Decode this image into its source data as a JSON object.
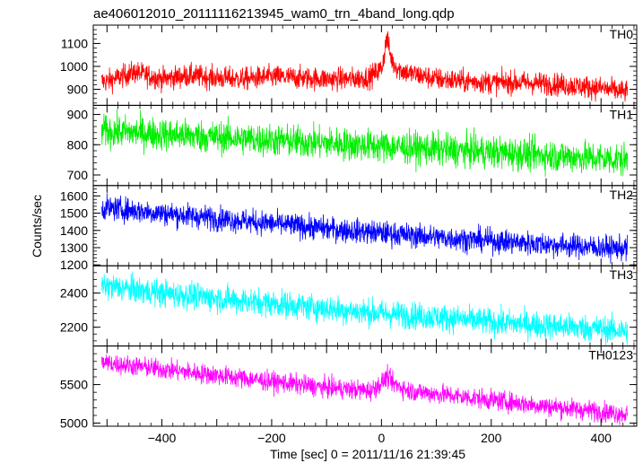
{
  "chart_data": {
    "type": "line",
    "title": "ae406012010_20111116213945_wam0_trn_4band_long.qdp",
    "xlabel": "Time [sec] 0 = 2011/11/16 21:39:45",
    "ylabel": "Counts/sec",
    "xlim": [
      -525,
      465
    ],
    "xticks": [
      -400,
      -200,
      0,
      200,
      400
    ],
    "grid": false,
    "panels": [
      {
        "name": "TH0",
        "color": "#ff0000",
        "ylim": [
          830,
          1180
        ],
        "yticks": [
          900,
          1000,
          1100
        ],
        "t": [
          -500,
          -450,
          -400,
          -350,
          -300,
          -250,
          -200,
          -150,
          -100,
          -50,
          -20,
          0,
          5,
          10,
          15,
          20,
          30,
          50,
          80,
          100,
          150,
          200,
          250,
          300,
          350,
          400,
          440
        ],
        "values": [
          935,
          975,
          945,
          960,
          950,
          945,
          955,
          950,
          945,
          945,
          955,
          990,
          1050,
          1130,
          1060,
          1020,
          990,
          970,
          955,
          945,
          935,
          930,
          930,
          925,
          915,
          905,
          890
        ],
        "noise": 25
      },
      {
        "name": "TH1",
        "color": "#00ee00",
        "ylim": [
          665,
          930
        ],
        "yticks": [
          700,
          800,
          900
        ],
        "t": [
          -500,
          -400,
          -300,
          -200,
          -100,
          0,
          100,
          200,
          300,
          400,
          440
        ],
        "values": [
          845,
          835,
          825,
          815,
          805,
          795,
          785,
          775,
          765,
          755,
          750
        ],
        "noise": 27
      },
      {
        "name": "TH2",
        "color": "#0000ff",
        "ylim": [
          1195,
          1660
        ],
        "yticks": [
          1200,
          1300,
          1400,
          1500,
          1600
        ],
        "t": [
          -500,
          -400,
          -300,
          -200,
          -100,
          0,
          100,
          200,
          300,
          400,
          440
        ],
        "values": [
          1530,
          1500,
          1470,
          1440,
          1410,
          1385,
          1360,
          1340,
          1320,
          1300,
          1295
        ],
        "noise": 35
      },
      {
        "name": "TH3",
        "color": "#00ffff",
        "ylim": [
          2090,
          2560
        ],
        "yticks": [
          2200,
          2400
        ],
        "t": [
          -500,
          -400,
          -300,
          -200,
          -100,
          0,
          100,
          200,
          300,
          400,
          440
        ],
        "values": [
          2440,
          2400,
          2370,
          2340,
          2310,
          2280,
          2260,
          2230,
          2210,
          2190,
          2180
        ],
        "noise": 40
      },
      {
        "name": "TH0123",
        "color": "#ff00ff",
        "ylim": [
          4960,
          6000
        ],
        "yticks": [
          5000,
          5500
        ],
        "t": [
          -500,
          -400,
          -300,
          -200,
          -100,
          -20,
          0,
          10,
          20,
          50,
          100,
          200,
          300,
          400,
          440
        ],
        "values": [
          5780,
          5700,
          5620,
          5540,
          5460,
          5420,
          5520,
          5600,
          5520,
          5420,
          5380,
          5300,
          5220,
          5150,
          5120
        ],
        "noise": 65
      }
    ]
  }
}
